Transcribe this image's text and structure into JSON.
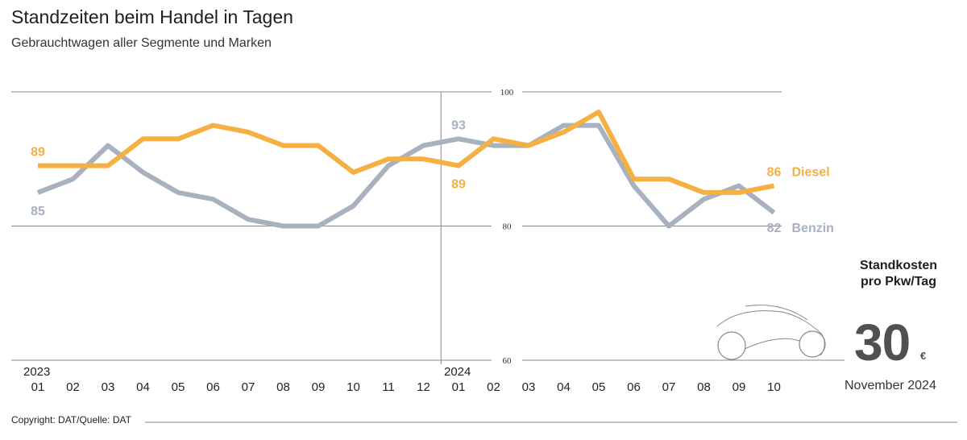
{
  "title": "Standzeiten beim Handel in Tagen",
  "subtitle": "Gebrauchtwagen aller Segmente und Marken",
  "copyright": "Copyright: DAT/Quelle: DAT",
  "standkosten": {
    "label_line1": "Standkosten",
    "label_line2": "pro Pkw/Tag",
    "value": "30",
    "unit": "€",
    "date": "November 2024",
    "icon": "car-outline-icon"
  },
  "chart_data": {
    "type": "line",
    "title": "Standzeiten beim Handel in Tagen",
    "subtitle": "Gebrauchtwagen aller Segmente und Marken",
    "ylim": [
      60,
      100
    ],
    "yticks": [
      "60",
      "80",
      "100"
    ],
    "grid": true,
    "years": [
      {
        "label": "2023",
        "start_index": 0
      },
      {
        "label": "2024",
        "start_index": 12
      }
    ],
    "categories": [
      "01",
      "02",
      "03",
      "04",
      "05",
      "06",
      "07",
      "08",
      "09",
      "10",
      "11",
      "12",
      "01",
      "02",
      "03",
      "04",
      "05",
      "06",
      "07",
      "08",
      "09",
      "10"
    ],
    "series": [
      {
        "name": "Diesel",
        "color": "#f5b041",
        "values": [
          89,
          89,
          89,
          93,
          93,
          95,
          94,
          92,
          92,
          88,
          90,
          90,
          89,
          93,
          92,
          94,
          97,
          87,
          87,
          85,
          85,
          86
        ]
      },
      {
        "name": "Benzin",
        "color": "#a8b1be",
        "values": [
          85,
          87,
          92,
          88,
          85,
          84,
          81,
          80,
          80,
          83,
          89,
          92,
          93,
          92,
          92,
          95,
          95,
          86,
          80,
          84,
          86,
          82
        ]
      }
    ],
    "annotations": [
      {
        "series": "Diesel",
        "index": 0,
        "text": "89"
      },
      {
        "series": "Benzin",
        "index": 0,
        "text": "85"
      },
      {
        "series": "Benzin",
        "index": 12,
        "text": "93"
      },
      {
        "series": "Diesel",
        "index": 12,
        "text": "89"
      },
      {
        "series": "Diesel",
        "index": 21,
        "text": "86"
      },
      {
        "series": "Benzin",
        "index": 21,
        "text": "82"
      }
    ]
  }
}
